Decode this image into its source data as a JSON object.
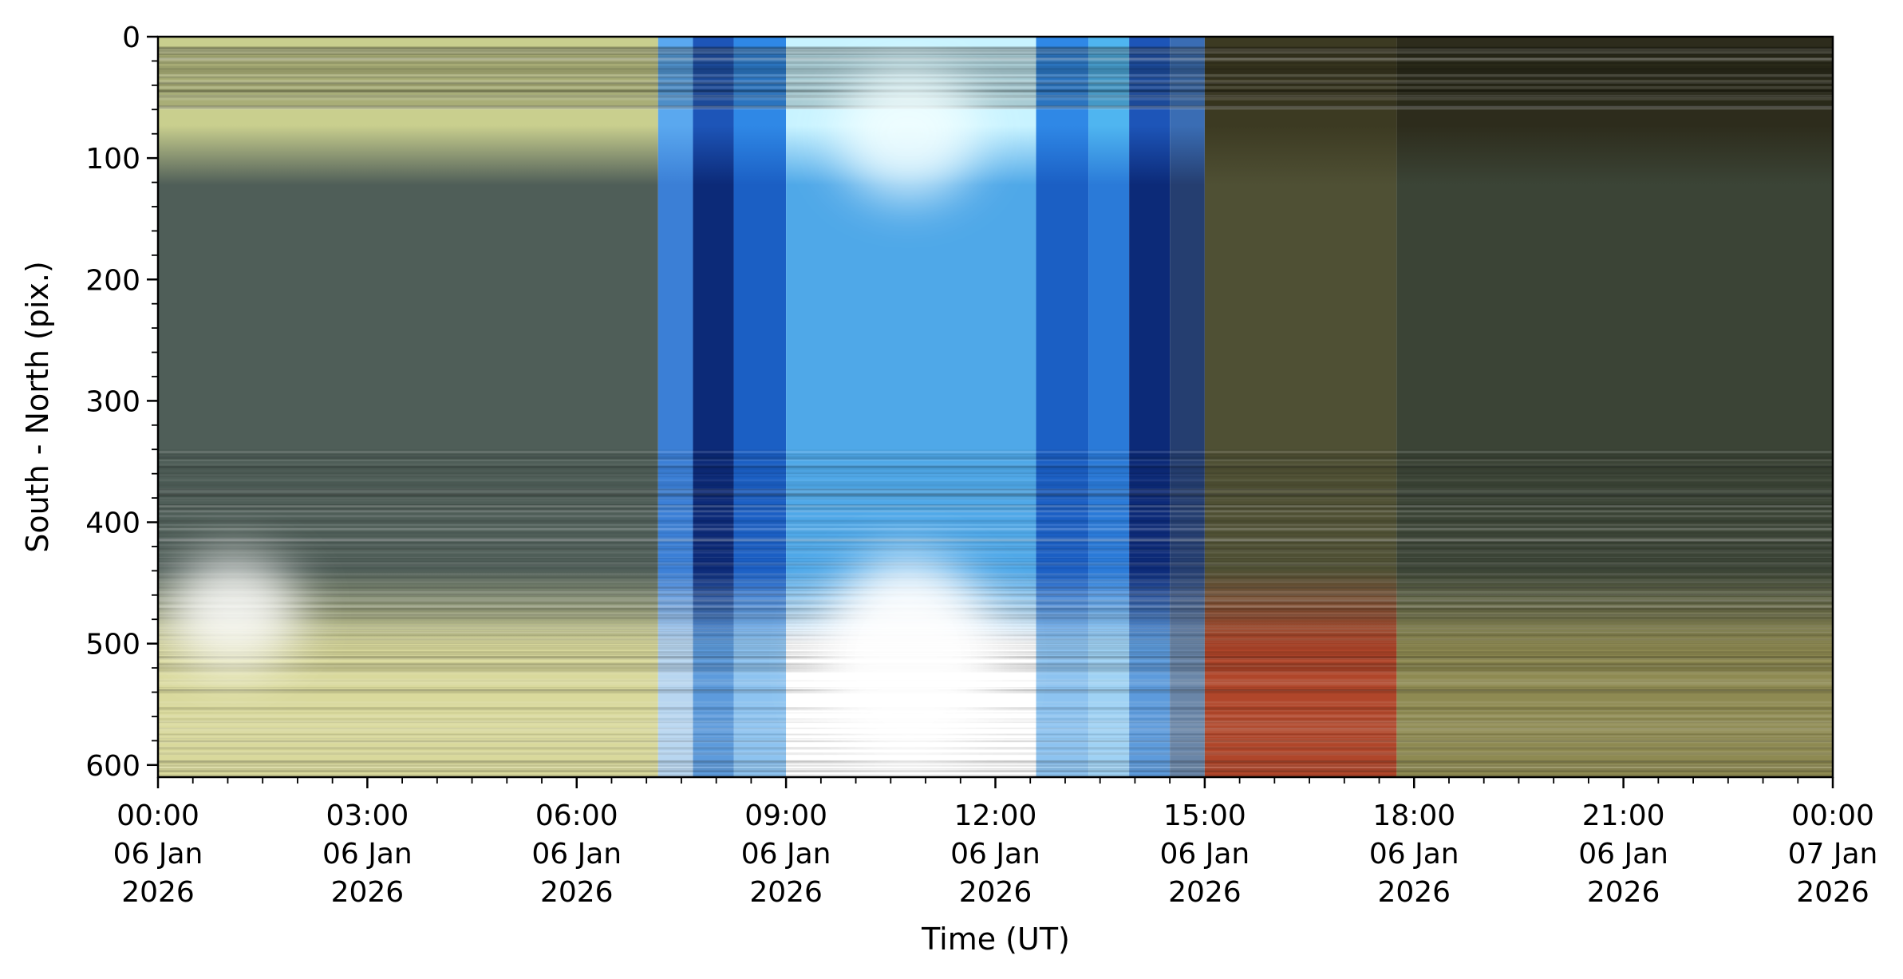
{
  "chart_data": {
    "type": "heatmap",
    "title": "",
    "xlabel": "Time (UT)",
    "ylabel": "South - North (pix.)",
    "x_range": [
      "2026-01-06T00:00",
      "2026-01-07T00:00"
    ],
    "y_range": [
      0,
      610
    ],
    "y_inverted": true,
    "grid": false,
    "y_ticks": [
      0,
      100,
      200,
      300,
      400,
      500,
      600
    ],
    "x_ticks": [
      {
        "time": "2026-01-06T00:00",
        "lines": [
          "00:00",
          "06 Jan",
          "2026"
        ]
      },
      {
        "time": "2026-01-06T03:00",
        "lines": [
          "03:00",
          "06 Jan",
          "2026"
        ]
      },
      {
        "time": "2026-01-06T06:00",
        "lines": [
          "06:00",
          "06 Jan",
          "2026"
        ]
      },
      {
        "time": "2026-01-06T09:00",
        "lines": [
          "09:00",
          "06 Jan",
          "2026"
        ]
      },
      {
        "time": "2026-01-06T12:00",
        "lines": [
          "12:00",
          "06 Jan",
          "2026"
        ]
      },
      {
        "time": "2026-01-06T15:00",
        "lines": [
          "15:00",
          "06 Jan",
          "2026"
        ]
      },
      {
        "time": "2026-01-06T18:00",
        "lines": [
          "18:00",
          "06 Jan",
          "2026"
        ]
      },
      {
        "time": "2026-01-06T21:00",
        "lines": [
          "21:00",
          "06 Jan",
          "2026"
        ]
      },
      {
        "time": "2026-01-07T00:00",
        "lines": [
          "00:00",
          "07 Jan",
          "2026"
        ]
      }
    ],
    "segments": [
      {
        "start": "00:00",
        "end": "07:10",
        "sky": "night-green",
        "top": "#c9cf8e",
        "mid": "#4f5e58",
        "bottom": "#d9d99c"
      },
      {
        "start": "07:10",
        "end": "07:40",
        "sky": "twilight-blue",
        "top": "#5aa8ef",
        "mid": "#3b7fd6",
        "bottom": "#b8d6f0"
      },
      {
        "start": "07:40",
        "end": "08:15",
        "sky": "deep-blue",
        "top": "#1d55b8",
        "mid": "#0c2a78",
        "bottom": "#5d9bdc"
      },
      {
        "start": "08:15",
        "end": "09:00",
        "sky": "blue",
        "top": "#2f88e6",
        "mid": "#1b5fc4",
        "bottom": "#8dc3f0"
      },
      {
        "start": "09:00",
        "end": "12:35",
        "sky": "day-bright",
        "top": "#c8f3ff",
        "mid": "#4fa8e8",
        "bottom": "#ffffff"
      },
      {
        "start": "12:35",
        "end": "13:20",
        "sky": "blue",
        "top": "#2f88e6",
        "mid": "#1b5fc4",
        "bottom": "#8dc3f0"
      },
      {
        "start": "13:20",
        "end": "13:55",
        "sky": "light-blue",
        "top": "#4fb5f0",
        "mid": "#2a7ad8",
        "bottom": "#9fd2f4"
      },
      {
        "start": "13:55",
        "end": "14:30",
        "sky": "deep-blue",
        "top": "#1d55b8",
        "mid": "#0c2a78",
        "bottom": "#5d9bdc"
      },
      {
        "start": "14:30",
        "end": "15:00",
        "sky": "twilight-blue",
        "top": "#3a6db4",
        "mid": "#253e70",
        "bottom": "#6a86a8"
      },
      {
        "start": "15:00",
        "end": "17:45",
        "sky": "night-olive",
        "top": "#3c3a22",
        "mid": "#4f5034",
        "bottom": "#b0462a"
      },
      {
        "start": "17:45",
        "end": "24:00",
        "sky": "night-dark",
        "top": "#2d2c1c",
        "mid": "#3b4436",
        "bottom": "#8e8a52"
      }
    ],
    "features": [
      {
        "name": "moon-glow-night",
        "time": "01:05",
        "y": 475,
        "color": "#ffffff"
      },
      {
        "name": "sun-glow-day",
        "time": "10:45",
        "y": 515,
        "color": "#ffffff"
      },
      {
        "name": "sky-glow-day",
        "time": "10:45",
        "y": 80,
        "color": "#f4ffff"
      }
    ],
    "colors": {
      "axis": "#000000",
      "horizon_band": "#c9cf8e",
      "twilight_blue": "#1d55b8",
      "sunset_orange": "#c0502a"
    }
  }
}
